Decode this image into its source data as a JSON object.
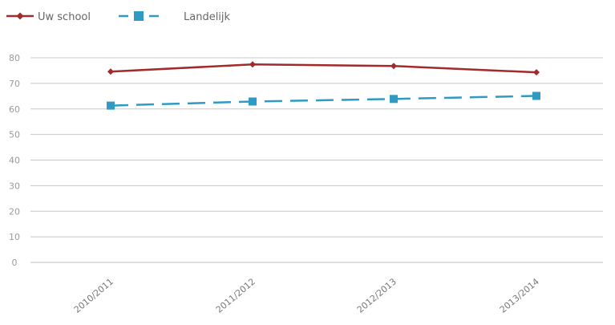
{
  "chart_data": {
    "type": "line",
    "title": "",
    "xlabel": "",
    "ylabel": "",
    "categories": [
      "2010/2011",
      "2011/2012",
      "2012/2013",
      "2013/2014"
    ],
    "ylim": [
      0,
      80
    ],
    "yticks": [
      0,
      10,
      20,
      30,
      40,
      50,
      60,
      70,
      80
    ],
    "grid": true,
    "legend_position": "top-left",
    "series": [
      {
        "name": "Uw school",
        "values": [
          74.6,
          77.4,
          76.8,
          74.3
        ],
        "color": "#a32a2a",
        "marker": "diamond",
        "dash": "solid"
      },
      {
        "name": "Landelijk",
        "values": [
          61.3,
          62.9,
          63.9,
          65.1
        ],
        "color": "#2f9bc4",
        "marker": "square",
        "dash": "dashed"
      }
    ]
  }
}
